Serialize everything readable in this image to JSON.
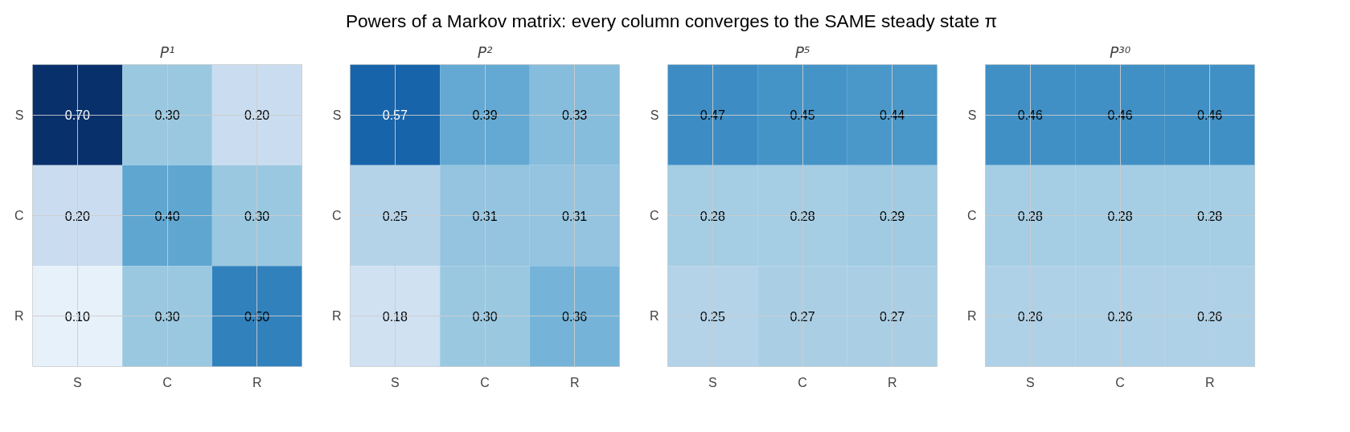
{
  "chart_data": [
    {
      "type": "heatmap",
      "title": "P¹",
      "annotations": [
        "Powers of a Markov matrix: every column converges to the SAME steady state π"
      ],
      "categories": [
        "S",
        "C",
        "R"
      ],
      "y_categories": [
        "S",
        "C",
        "R"
      ],
      "cells": [
        [
          0.7,
          0.3,
          0.2
        ],
        [
          0.2,
          0.4,
          0.3
        ],
        [
          0.1,
          0.3,
          0.5
        ]
      ],
      "cell_labels": [
        [
          "0.70",
          "0.30",
          "0.20"
        ],
        [
          "0.20",
          "0.40",
          "0.30"
        ],
        [
          "0.10",
          "0.30",
          "0.50"
        ]
      ],
      "grid": true
    },
    {
      "type": "heatmap",
      "title": "P²",
      "categories": [
        "S",
        "C",
        "R"
      ],
      "y_categories": [
        "S",
        "C",
        "R"
      ],
      "cells": [
        [
          0.57,
          0.39,
          0.33
        ],
        [
          0.25,
          0.31,
          0.31
        ],
        [
          0.18,
          0.3,
          0.36
        ]
      ],
      "cell_labels": [
        [
          "0.57",
          "0.39",
          "0.33"
        ],
        [
          "0.25",
          "0.31",
          "0.31"
        ],
        [
          "0.18",
          "0.30",
          "0.36"
        ]
      ],
      "grid": true
    },
    {
      "type": "heatmap",
      "title": "P⁵",
      "categories": [
        "S",
        "C",
        "R"
      ],
      "y_categories": [
        "S",
        "C",
        "R"
      ],
      "cells": [
        [
          0.47,
          0.45,
          0.44
        ],
        [
          0.28,
          0.28,
          0.29
        ],
        [
          0.25,
          0.27,
          0.27
        ]
      ],
      "cell_labels": [
        [
          "0.47",
          "0.45",
          "0.44"
        ],
        [
          "0.28",
          "0.28",
          "0.29"
        ],
        [
          "0.25",
          "0.27",
          "0.27"
        ]
      ],
      "grid": true
    },
    {
      "type": "heatmap",
      "title": "P³⁰",
      "categories": [
        "S",
        "C",
        "R"
      ],
      "y_categories": [
        "S",
        "C",
        "R"
      ],
      "cells": [
        [
          0.46,
          0.46,
          0.46
        ],
        [
          0.28,
          0.28,
          0.28
        ],
        [
          0.26,
          0.26,
          0.26
        ]
      ],
      "cell_labels": [
        [
          "0.46",
          "0.46",
          "0.46"
        ],
        [
          "0.28",
          "0.28",
          "0.28"
        ],
        [
          "0.26",
          "0.26",
          "0.26"
        ]
      ],
      "grid": true
    }
  ]
}
